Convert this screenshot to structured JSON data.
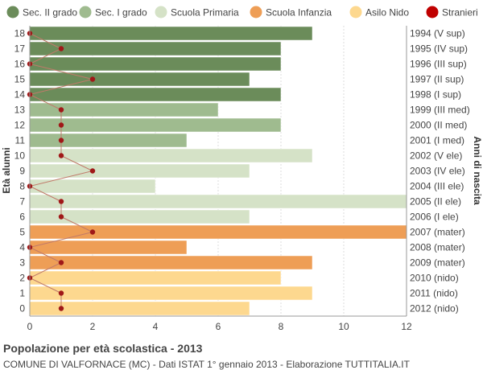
{
  "chart_data": {
    "type": "bar",
    "orientation": "horizontal",
    "title": "Popolazione per età scolastica - 2013",
    "subtitle": "COMUNE DI VALFORNACE (MC) - Dati ISTAT 1° gennaio 2013 - Elaborazione TUTTITALIA.IT",
    "ylabel": "Età alunni",
    "ylabel_right": "Anni di nascita",
    "xlim": [
      0,
      12
    ],
    "x_ticks": [
      "0",
      "2",
      "4",
      "6",
      "8",
      "10",
      "12"
    ],
    "grid": true,
    "legend_position": "top",
    "legend": [
      {
        "name": "Sec. II grado",
        "color": "#6b8c5a"
      },
      {
        "name": "Sec. I grado",
        "color": "#9fbb8f"
      },
      {
        "name": "Scuola Primaria",
        "color": "#d5e2c7"
      },
      {
        "name": "Scuola Infanzia",
        "color": "#ee9e56"
      },
      {
        "name": "Asilo Nido",
        "color": "#fdd88f"
      },
      {
        "name": "Stranieri",
        "color": "#c00000"
      }
    ],
    "rows": [
      {
        "age": "18",
        "birth": "1994 (V sup)",
        "value": 9,
        "stranieri": 0,
        "group": 0
      },
      {
        "age": "17",
        "birth": "1995 (IV sup)",
        "value": 8,
        "stranieri": 1,
        "group": 0
      },
      {
        "age": "16",
        "birth": "1996 (III sup)",
        "value": 8,
        "stranieri": 0,
        "group": 0
      },
      {
        "age": "15",
        "birth": "1997 (II sup)",
        "value": 7,
        "stranieri": 2,
        "group": 0
      },
      {
        "age": "14",
        "birth": "1998 (I sup)",
        "value": 8,
        "stranieri": 0,
        "group": 0
      },
      {
        "age": "13",
        "birth": "1999 (III med)",
        "value": 6,
        "stranieri": 1,
        "group": 1
      },
      {
        "age": "12",
        "birth": "2000 (II med)",
        "value": 8,
        "stranieri": 1,
        "group": 1
      },
      {
        "age": "11",
        "birth": "2001 (I med)",
        "value": 5,
        "stranieri": 1,
        "group": 1
      },
      {
        "age": "10",
        "birth": "2002 (V ele)",
        "value": 9,
        "stranieri": 1,
        "group": 2
      },
      {
        "age": "9",
        "birth": "2003 (IV ele)",
        "value": 7,
        "stranieri": 2,
        "group": 2
      },
      {
        "age": "8",
        "birth": "2004 (III ele)",
        "value": 4,
        "stranieri": 0,
        "group": 2
      },
      {
        "age": "7",
        "birth": "2005 (II ele)",
        "value": 12,
        "stranieri": 1,
        "group": 2
      },
      {
        "age": "6",
        "birth": "2006 (I ele)",
        "value": 7,
        "stranieri": 1,
        "group": 2
      },
      {
        "age": "5",
        "birth": "2007 (mater)",
        "value": 12,
        "stranieri": 2,
        "group": 3
      },
      {
        "age": "4",
        "birth": "2008 (mater)",
        "value": 5,
        "stranieri": 0,
        "group": 3
      },
      {
        "age": "3",
        "birth": "2009 (mater)",
        "value": 9,
        "stranieri": 1,
        "group": 3
      },
      {
        "age": "2",
        "birth": "2010 (nido)",
        "value": 8,
        "stranieri": 0,
        "group": 4
      },
      {
        "age": "1",
        "birth": "2011 (nido)",
        "value": 9,
        "stranieri": 1,
        "group": 4
      },
      {
        "age": "0",
        "birth": "2012 (nido)",
        "value": 7,
        "stranieri": 1,
        "group": 4
      }
    ]
  }
}
